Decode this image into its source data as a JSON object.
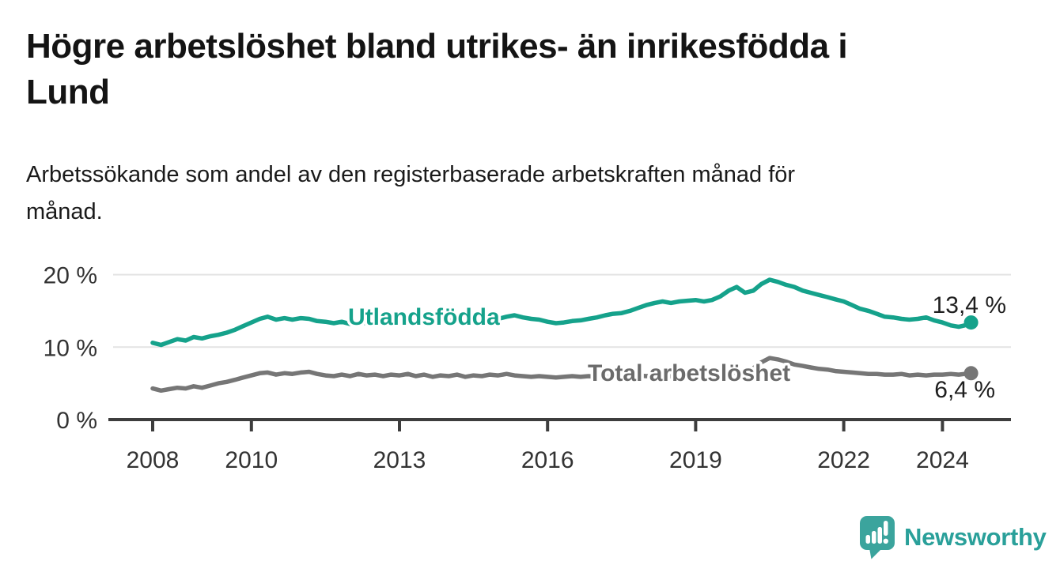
{
  "title_lines": [
    "Högre arbetslöshet bland utrikes- än inrikesfödda i",
    "Lund"
  ],
  "subtitle_lines": [
    "Arbetssökande som andel av den registerbaserade arbetskraften månad för",
    "månad."
  ],
  "logo": {
    "name": "Newsworthy",
    "icon": "newsworthy-speech-bubble-barchart-icon"
  },
  "colors": {
    "accent_teal": "#15a28b",
    "series_gray": "#767676",
    "axis": "#3d3d3d",
    "grid": "#e3e3e3",
    "text": "#1a1a1a",
    "logo_teal": "#2aa09a",
    "icon_teal": "#3ba49d"
  },
  "chart_data": {
    "type": "line",
    "title": "Högre arbetslöshet bland utrikes- än inrikesfödda i Lund",
    "subtitle": "Arbetssökande som andel av den registerbaserade arbetskraften månad för månad.",
    "xlabel": "",
    "ylabel": "",
    "grid": "horizontal",
    "legend": "inline-labels",
    "xlim": [
      2007.1,
      2025.4
    ],
    "ylim": [
      0,
      21.8
    ],
    "x_ticks": [
      {
        "value": 2008,
        "label": "2008"
      },
      {
        "value": 2010,
        "label": "2010"
      },
      {
        "value": 2013,
        "label": "2013"
      },
      {
        "value": 2016,
        "label": "2016"
      },
      {
        "value": 2019,
        "label": "2019"
      },
      {
        "value": 2022,
        "label": "2022"
      },
      {
        "value": 2024,
        "label": "2024"
      }
    ],
    "y_ticks": [
      {
        "value": 0,
        "label": "0 %"
      },
      {
        "value": 10,
        "label": "10 %"
      },
      {
        "value": 20,
        "label": "20 %"
      }
    ],
    "series": [
      {
        "name": "Utlandsfödda",
        "color": "#15a28b",
        "end_label": "13,4 %",
        "last_value": 13.4,
        "points": [
          [
            2008,
            10.6
          ],
          [
            2008.17,
            10.3
          ],
          [
            2008.33,
            10.7
          ],
          [
            2008.5,
            11.1
          ],
          [
            2008.67,
            10.9
          ],
          [
            2008.83,
            11.4
          ],
          [
            2009,
            11.2
          ],
          [
            2009.17,
            11.5
          ],
          [
            2009.33,
            11.7
          ],
          [
            2009.5,
            12.0
          ],
          [
            2009.67,
            12.4
          ],
          [
            2009.83,
            12.9
          ],
          [
            2010,
            13.4
          ],
          [
            2010.17,
            13.9
          ],
          [
            2010.33,
            14.2
          ],
          [
            2010.5,
            13.8
          ],
          [
            2010.67,
            14.0
          ],
          [
            2010.83,
            13.8
          ],
          [
            2011,
            14.0
          ],
          [
            2011.17,
            13.9
          ],
          [
            2011.33,
            13.6
          ],
          [
            2011.5,
            13.5
          ],
          [
            2011.67,
            13.3
          ],
          [
            2011.83,
            13.5
          ],
          [
            2012,
            13.2
          ],
          [
            2012.17,
            13.5
          ],
          [
            2012.33,
            13.3
          ],
          [
            2012.5,
            13.4
          ],
          [
            2012.67,
            13.2
          ],
          [
            2012.83,
            13.6
          ],
          [
            2013,
            13.4
          ],
          [
            2013.17,
            13.7
          ],
          [
            2013.33,
            13.5
          ],
          [
            2013.5,
            13.7
          ],
          [
            2013.67,
            13.5
          ],
          [
            2013.83,
            13.7
          ],
          [
            2014,
            13.6
          ],
          [
            2014.17,
            13.8
          ],
          [
            2014.33,
            13.6
          ],
          [
            2014.5,
            13.8
          ],
          [
            2014.67,
            13.9
          ],
          [
            2014.83,
            14.1
          ],
          [
            2015,
            13.9
          ],
          [
            2015.17,
            14.2
          ],
          [
            2015.33,
            14.4
          ],
          [
            2015.5,
            14.1
          ],
          [
            2015.67,
            13.9
          ],
          [
            2015.83,
            13.8
          ],
          [
            2016,
            13.5
          ],
          [
            2016.17,
            13.3
          ],
          [
            2016.33,
            13.4
          ],
          [
            2016.5,
            13.6
          ],
          [
            2016.67,
            13.7
          ],
          [
            2016.83,
            13.9
          ],
          [
            2017,
            14.1
          ],
          [
            2017.17,
            14.4
          ],
          [
            2017.33,
            14.6
          ],
          [
            2017.5,
            14.7
          ],
          [
            2017.67,
            15.0
          ],
          [
            2017.83,
            15.4
          ],
          [
            2018,
            15.8
          ],
          [
            2018.17,
            16.1
          ],
          [
            2018.33,
            16.3
          ],
          [
            2018.5,
            16.1
          ],
          [
            2018.67,
            16.3
          ],
          [
            2018.83,
            16.4
          ],
          [
            2019,
            16.5
          ],
          [
            2019.17,
            16.3
          ],
          [
            2019.33,
            16.5
          ],
          [
            2019.5,
            17.0
          ],
          [
            2019.67,
            17.8
          ],
          [
            2019.83,
            18.3
          ],
          [
            2020,
            17.5
          ],
          [
            2020.17,
            17.8
          ],
          [
            2020.33,
            18.7
          ],
          [
            2020.5,
            19.3
          ],
          [
            2020.67,
            19.0
          ],
          [
            2020.83,
            18.6
          ],
          [
            2021,
            18.3
          ],
          [
            2021.17,
            17.8
          ],
          [
            2021.33,
            17.5
          ],
          [
            2021.5,
            17.2
          ],
          [
            2021.67,
            16.9
          ],
          [
            2021.83,
            16.6
          ],
          [
            2022,
            16.3
          ],
          [
            2022.17,
            15.8
          ],
          [
            2022.33,
            15.3
          ],
          [
            2022.5,
            15.0
          ],
          [
            2022.67,
            14.6
          ],
          [
            2022.83,
            14.2
          ],
          [
            2023,
            14.1
          ],
          [
            2023.17,
            13.9
          ],
          [
            2023.33,
            13.8
          ],
          [
            2023.5,
            13.9
          ],
          [
            2023.67,
            14.1
          ],
          [
            2023.83,
            13.7
          ],
          [
            2024,
            13.4
          ],
          [
            2024.17,
            13.0
          ],
          [
            2024.33,
            12.8
          ],
          [
            2024.45,
            13.0
          ],
          [
            2024.58,
            13.4
          ]
        ]
      },
      {
        "name": "Total arbetslöshet",
        "color": "#767676",
        "end_label": "6,4 %",
        "last_value": 6.4,
        "points": [
          [
            2008,
            4.3
          ],
          [
            2008.17,
            4.0
          ],
          [
            2008.33,
            4.2
          ],
          [
            2008.5,
            4.4
          ],
          [
            2008.67,
            4.3
          ],
          [
            2008.83,
            4.6
          ],
          [
            2009,
            4.4
          ],
          [
            2009.17,
            4.7
          ],
          [
            2009.33,
            5.0
          ],
          [
            2009.5,
            5.2
          ],
          [
            2009.67,
            5.5
          ],
          [
            2009.83,
            5.8
          ],
          [
            2010,
            6.1
          ],
          [
            2010.17,
            6.4
          ],
          [
            2010.33,
            6.5
          ],
          [
            2010.5,
            6.2
          ],
          [
            2010.67,
            6.4
          ],
          [
            2010.83,
            6.3
          ],
          [
            2011,
            6.5
          ],
          [
            2011.17,
            6.6
          ],
          [
            2011.33,
            6.3
          ],
          [
            2011.5,
            6.1
          ],
          [
            2011.67,
            6.0
          ],
          [
            2011.83,
            6.2
          ],
          [
            2012,
            6.0
          ],
          [
            2012.17,
            6.3
          ],
          [
            2012.33,
            6.1
          ],
          [
            2012.5,
            6.2
          ],
          [
            2012.67,
            6.0
          ],
          [
            2012.83,
            6.2
          ],
          [
            2013,
            6.1
          ],
          [
            2013.17,
            6.3
          ],
          [
            2013.33,
            6.0
          ],
          [
            2013.5,
            6.2
          ],
          [
            2013.67,
            5.9
          ],
          [
            2013.83,
            6.1
          ],
          [
            2014,
            6.0
          ],
          [
            2014.17,
            6.2
          ],
          [
            2014.33,
            5.9
          ],
          [
            2014.5,
            6.1
          ],
          [
            2014.67,
            6.0
          ],
          [
            2014.83,
            6.2
          ],
          [
            2015,
            6.1
          ],
          [
            2015.17,
            6.3
          ],
          [
            2015.33,
            6.1
          ],
          [
            2015.5,
            6.0
          ],
          [
            2015.67,
            5.9
          ],
          [
            2015.83,
            6.0
          ],
          [
            2016,
            5.9
          ],
          [
            2016.17,
            5.8
          ],
          [
            2016.33,
            5.9
          ],
          [
            2016.5,
            6.0
          ],
          [
            2016.67,
            5.9
          ],
          [
            2016.83,
            6.0
          ],
          [
            2017,
            5.9
          ],
          [
            2017.17,
            6.0
          ],
          [
            2017.33,
            5.9
          ],
          [
            2017.5,
            5.9
          ],
          [
            2017.67,
            6.0
          ],
          [
            2017.83,
            6.1
          ],
          [
            2018,
            6.0
          ],
          [
            2018.17,
            6.1
          ],
          [
            2018.33,
            5.9
          ],
          [
            2018.5,
            6.0
          ],
          [
            2018.67,
            6.1
          ],
          [
            2018.83,
            6.0
          ],
          [
            2019,
            6.1
          ],
          [
            2019.17,
            6.2
          ],
          [
            2019.33,
            6.2
          ],
          [
            2019.5,
            6.3
          ],
          [
            2019.67,
            6.4
          ],
          [
            2019.83,
            6.5
          ],
          [
            2020,
            6.6
          ],
          [
            2020.17,
            7.1
          ],
          [
            2020.33,
            7.9
          ],
          [
            2020.5,
            8.5
          ],
          [
            2020.67,
            8.3
          ],
          [
            2020.83,
            8.0
          ],
          [
            2021,
            7.6
          ],
          [
            2021.17,
            7.4
          ],
          [
            2021.33,
            7.2
          ],
          [
            2021.5,
            7.0
          ],
          [
            2021.67,
            6.9
          ],
          [
            2021.83,
            6.7
          ],
          [
            2022,
            6.6
          ],
          [
            2022.17,
            6.5
          ],
          [
            2022.33,
            6.4
          ],
          [
            2022.5,
            6.3
          ],
          [
            2022.67,
            6.3
          ],
          [
            2022.83,
            6.2
          ],
          [
            2023,
            6.2
          ],
          [
            2023.17,
            6.3
          ],
          [
            2023.33,
            6.1
          ],
          [
            2023.5,
            6.2
          ],
          [
            2023.67,
            6.1
          ],
          [
            2023.83,
            6.2
          ],
          [
            2024,
            6.2
          ],
          [
            2024.17,
            6.3
          ],
          [
            2024.33,
            6.2
          ],
          [
            2024.45,
            6.3
          ],
          [
            2024.58,
            6.4
          ]
        ]
      }
    ]
  }
}
